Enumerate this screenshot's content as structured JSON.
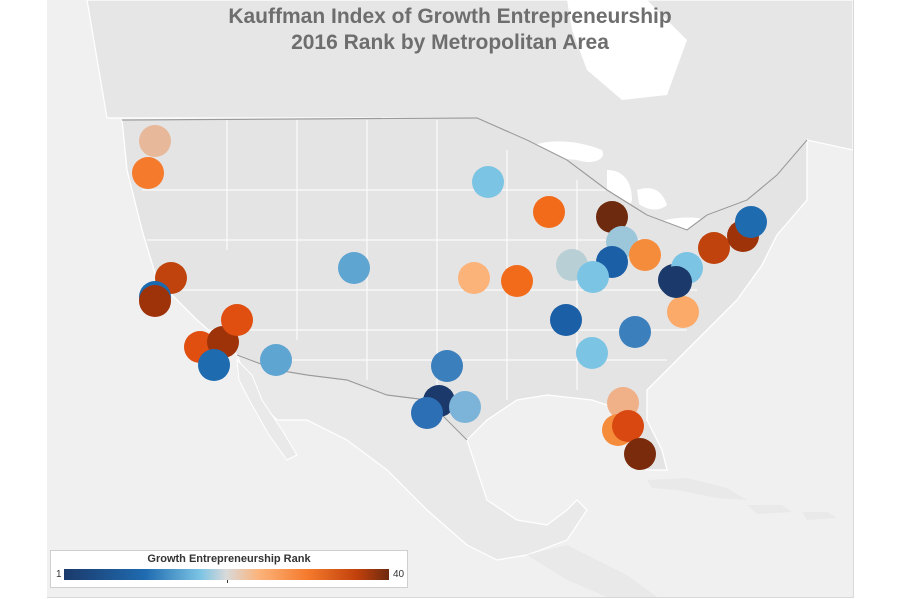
{
  "title_line1": "Kauffman Index of Growth Entrepreneurship",
  "title_line2": "2016 Rank by Metropolitan Area",
  "legend": {
    "title": "Growth Entrepreneurship Rank",
    "min_label": "1",
    "max_label": "40"
  },
  "colors": {
    "rank_low": "#1b3a6b",
    "rank_mid_blue": "#1f6bb0",
    "rank_light_blue": "#7cc4e4",
    "rank_neutral": "#d9d9d9",
    "rank_light_orange": "#fbb37a",
    "rank_orange": "#f57a2c",
    "rank_high": "#6e2a0f"
  },
  "markers": [
    {
      "color": "#e8b89a"
    },
    {
      "color": "#f57a2c"
    },
    {
      "color": "#7cc4e4"
    },
    {
      "color": "#c0430d"
    },
    {
      "color": "#f26b1a"
    },
    {
      "color": "#6e2a0f"
    },
    {
      "color": "#9cc6d9"
    },
    {
      "color": "#1b5fa6"
    },
    {
      "color": "#b9cfd6"
    },
    {
      "color": "#7cc4e4"
    },
    {
      "color": "#f58c3c"
    },
    {
      "color": "#1b3a6b"
    },
    {
      "color": "#7cc4e4"
    },
    {
      "color": "#c0430d"
    },
    {
      "color": "#1b6ab0"
    },
    {
      "color": "#9e3309"
    },
    {
      "color": "#5fa5d2"
    },
    {
      "color": "#fbb37a"
    },
    {
      "color": "#f26b1a"
    },
    {
      "color": "#1b5fa6"
    },
    {
      "color": "#fbaa6a"
    },
    {
      "color": "#3b7fbd"
    },
    {
      "color": "#7cc4e4"
    },
    {
      "color": "#9e3309"
    },
    {
      "color": "#1b3a6b"
    },
    {
      "color": "#1f6bb0"
    },
    {
      "color": "#e04e10"
    },
    {
      "color": "#9e3309"
    },
    {
      "color": "#e04e10"
    },
    {
      "color": "#1f6bb0"
    },
    {
      "color": "#5fa5d2"
    },
    {
      "color": "#3b7fbd"
    },
    {
      "color": "#1b3a6b"
    },
    {
      "color": "#2c6fb5"
    },
    {
      "color": "#7cb3d8"
    },
    {
      "color": "#f0b088"
    },
    {
      "color": "#f58c3c"
    },
    {
      "color": "#d84810"
    },
    {
      "color": "#7a2b0b"
    }
  ]
}
